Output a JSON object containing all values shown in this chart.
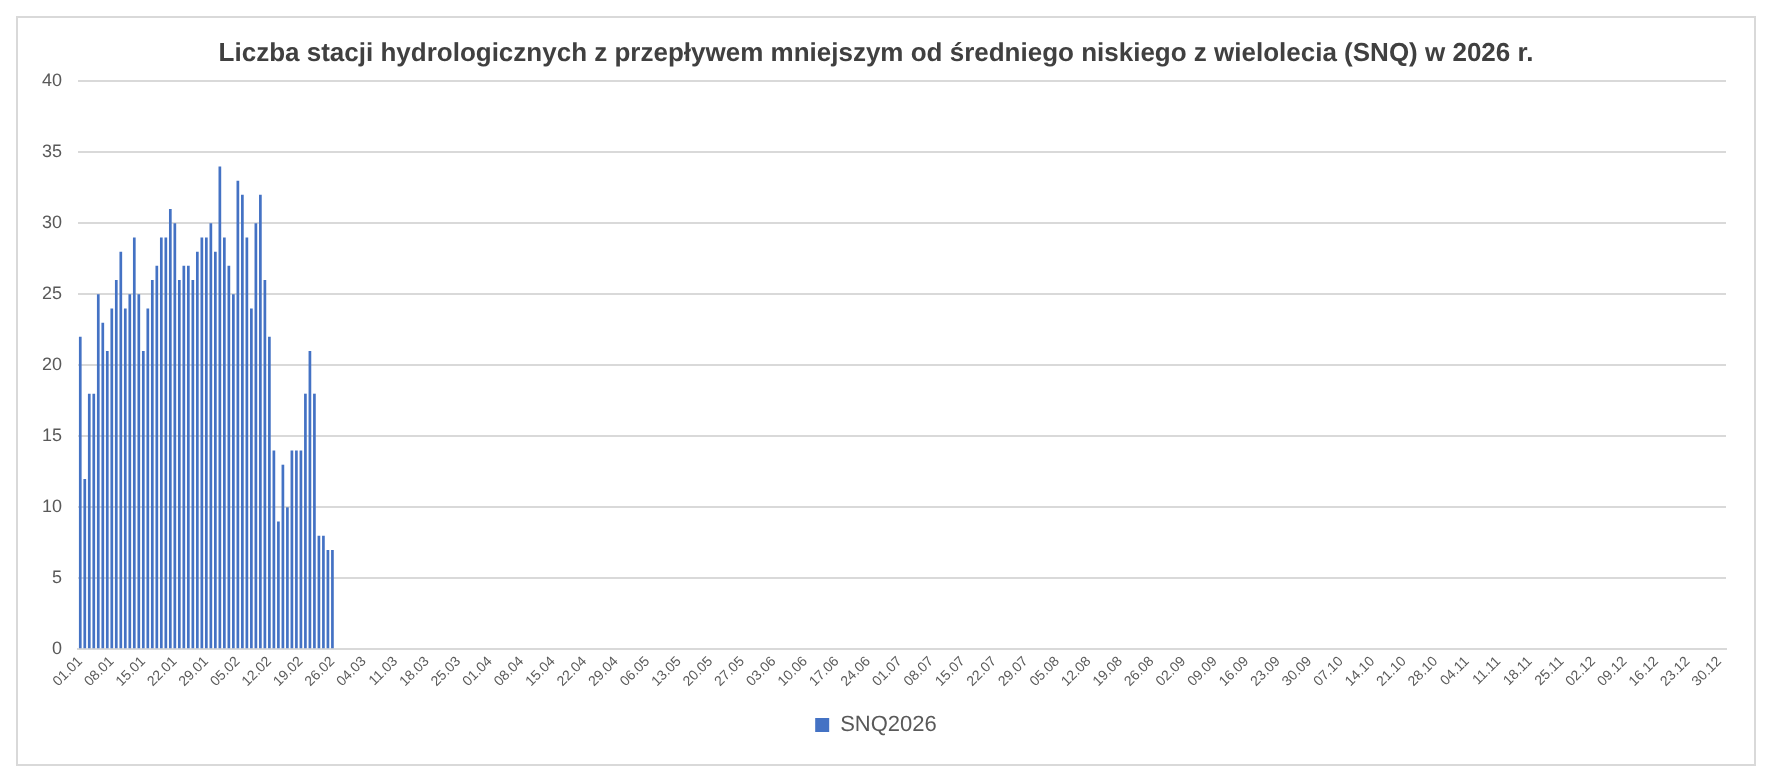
{
  "chart_data": {
    "type": "bar",
    "title": "Liczba stacji hydrologicznych z przepływem mniejszym od średniego niskiego z wielolecia (SNQ) w 2026 r.",
    "categories": [
      "01.01",
      null,
      null,
      null,
      null,
      null,
      null,
      "08.01",
      null,
      null,
      null,
      null,
      null,
      null,
      "15.01",
      null,
      null,
      null,
      null,
      null,
      null,
      "22.01",
      null,
      null,
      null,
      null,
      null,
      null,
      "29.01",
      null,
      null,
      null,
      null,
      null,
      null,
      "05.02",
      null,
      null,
      null,
      null,
      null,
      null,
      "12.02",
      null,
      null,
      null,
      null,
      null,
      null,
      "19.02",
      null,
      null,
      null,
      null,
      null,
      null,
      "26.02",
      null,
      null,
      null,
      null,
      null,
      null,
      "04.03",
      null,
      null,
      null,
      null,
      null,
      null,
      "11.03",
      null,
      null,
      null,
      null,
      null,
      null,
      "18.03",
      null,
      null,
      null,
      null,
      null,
      null,
      "25.03",
      null,
      null,
      null,
      null,
      null,
      null,
      "01.04",
      null,
      null,
      null,
      null,
      null,
      null,
      "08.04",
      null,
      null,
      null,
      null,
      null,
      null,
      "15.04",
      null,
      null,
      null,
      null,
      null,
      null,
      "22.04",
      null,
      null,
      null,
      null,
      null,
      null,
      "29.04",
      null,
      null,
      null,
      null,
      null,
      null,
      "06.05",
      null,
      null,
      null,
      null,
      null,
      null,
      "13.05",
      null,
      null,
      null,
      null,
      null,
      null,
      "20.05",
      null,
      null,
      null,
      null,
      null,
      null,
      "27.05",
      null,
      null,
      null,
      null,
      null,
      null,
      "03.06",
      null,
      null,
      null,
      null,
      null,
      null,
      "10.06",
      null,
      null,
      null,
      null,
      null,
      null,
      "17.06",
      null,
      null,
      null,
      null,
      null,
      null,
      "24.06",
      null,
      null,
      null,
      null,
      null,
      null,
      "01.07",
      null,
      null,
      null,
      null,
      null,
      null,
      "08.07",
      null,
      null,
      null,
      null,
      null,
      null,
      "15.07",
      null,
      null,
      null,
      null,
      null,
      null,
      "22.07",
      null,
      null,
      null,
      null,
      null,
      null,
      "29.07",
      null,
      null,
      null,
      null,
      null,
      null,
      "05.08",
      null,
      null,
      null,
      null,
      null,
      null,
      "12.08",
      null,
      null,
      null,
      null,
      null,
      null,
      "19.08",
      null,
      null,
      null,
      null,
      null,
      null,
      "26.08",
      null,
      null,
      null,
      null,
      null,
      null,
      "02.09",
      null,
      null,
      null,
      null,
      null,
      null,
      "09.09",
      null,
      null,
      null,
      null,
      null,
      null,
      "16.09",
      null,
      null,
      null,
      null,
      null,
      null,
      "23.09",
      null,
      null,
      null,
      null,
      null,
      null,
      "30.09",
      null,
      null,
      null,
      null,
      null,
      null,
      "07.10",
      null,
      null,
      null,
      null,
      null,
      null,
      "14.10",
      null,
      null,
      null,
      null,
      null,
      null,
      "21.10",
      null,
      null,
      null,
      null,
      null,
      null,
      "28.10",
      null,
      null,
      null,
      null,
      null,
      null,
      "04.11",
      null,
      null,
      null,
      null,
      null,
      null,
      "11.11",
      null,
      null,
      null,
      null,
      null,
      null,
      "18.11",
      null,
      null,
      null,
      null,
      null,
      null,
      "25.11",
      null,
      null,
      null,
      null,
      null,
      null,
      "02.12",
      null,
      null,
      null,
      null,
      null,
      null,
      "09.12",
      null,
      null,
      null,
      null,
      null,
      null,
      "16.12",
      null,
      null,
      null,
      null,
      null,
      null,
      "23.12",
      null,
      null,
      null,
      null,
      null,
      null,
      "30.12",
      null
    ],
    "series": [
      {
        "name": "SNQ2026",
        "color": "#4472c4",
        "values": [
          22,
          12,
          18,
          18,
          25,
          23,
          21,
          24,
          26,
          28,
          24,
          25,
          29,
          25,
          21,
          24,
          26,
          27,
          29,
          29,
          31,
          30,
          26,
          27,
          27,
          26,
          28,
          29,
          29,
          30,
          28,
          34,
          29,
          27,
          25,
          33,
          32,
          29,
          24,
          30,
          32,
          26,
          22,
          14,
          9,
          13,
          10,
          14,
          14,
          14,
          18,
          21,
          18,
          8,
          8,
          7,
          7,
          null,
          null,
          null,
          null,
          null,
          null,
          null,
          null,
          null,
          null,
          null,
          null,
          null,
          null,
          null,
          null,
          null,
          null,
          null,
          null,
          null,
          null,
          null,
          null,
          null,
          null,
          null,
          null,
          null,
          null,
          null,
          null,
          null,
          null,
          null,
          null,
          null,
          null,
          null,
          null,
          null,
          null,
          null,
          null,
          null,
          null,
          null,
          null,
          null,
          null,
          null,
          null,
          null,
          null,
          null,
          null,
          null,
          null,
          null,
          null,
          null,
          null,
          null,
          null,
          null,
          null,
          null,
          null,
          null,
          null,
          null,
          null,
          null,
          null,
          null,
          null,
          null,
          null,
          null,
          null,
          null,
          null,
          null,
          null,
          null,
          null,
          null,
          null,
          null,
          null,
          null,
          null,
          null,
          null,
          null,
          null,
          null,
          null,
          null,
          null,
          null,
          null,
          null,
          null,
          null,
          null,
          null,
          null,
          null,
          null,
          null,
          null,
          null,
          null,
          null,
          null,
          null,
          null,
          null,
          null,
          null,
          null,
          null,
          null,
          null,
          null,
          null,
          null,
          null,
          null,
          null,
          null,
          null,
          null,
          null,
          null,
          null,
          null,
          null,
          null,
          null,
          null,
          null,
          null,
          null,
          null,
          null,
          null,
          null,
          null,
          null,
          null,
          null,
          null,
          null,
          null,
          null,
          null,
          null,
          null,
          null,
          null,
          null,
          null,
          null,
          null,
          null,
          null,
          null,
          null,
          null,
          null,
          null,
          null,
          null,
          null,
          null,
          null,
          null,
          null,
          null,
          null,
          null,
          null,
          null,
          null,
          null,
          null,
          null,
          null,
          null,
          null,
          null,
          null,
          null,
          null,
          null,
          null,
          null,
          null,
          null,
          null,
          null,
          null,
          null,
          null,
          null,
          null,
          null,
          null,
          null,
          null,
          null,
          null,
          null,
          null,
          null,
          null,
          null,
          null,
          null,
          null,
          null,
          null,
          null,
          null,
          null,
          null,
          null,
          null,
          null,
          null,
          null,
          null,
          null,
          null,
          null,
          null,
          null,
          null,
          null,
          null,
          null,
          null,
          null,
          null,
          null,
          null,
          null,
          null,
          null,
          null,
          null,
          null,
          null,
          null,
          null,
          null,
          null,
          null,
          null,
          null,
          null,
          null,
          null,
          null,
          null,
          null,
          null,
          null,
          null,
          null,
          null,
          null,
          null,
          null,
          null,
          null,
          null,
          null,
          null,
          null,
          null,
          null,
          null,
          null,
          null,
          null,
          null,
          null,
          null,
          null,
          null,
          null,
          null,
          null,
          null,
          null,
          null,
          null,
          null,
          null,
          null,
          null,
          null,
          null,
          null,
          null,
          null
        ]
      }
    ],
    "ylim": [
      0,
      40
    ],
    "yticks": [
      0,
      5,
      10,
      15,
      20,
      25,
      30,
      35,
      40
    ],
    "grid": "y",
    "legend": "bottom"
  }
}
